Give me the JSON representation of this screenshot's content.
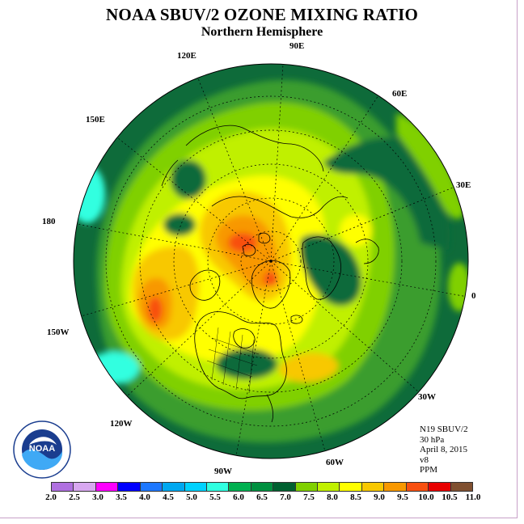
{
  "title": "NOAA SBUV/2 OZONE MIXING RATIO",
  "subtitle": "Northern Hemisphere",
  "longitude_labels": {
    "lon_90e": "90E",
    "lon_60e": "60E",
    "lon_30e": "30E",
    "lon_0": "0",
    "lon_30w": "30W",
    "lon_60w": "60W",
    "lon_90w": "90W",
    "lon_120w": "120W",
    "lon_150w": "150W",
    "lon_180": "180",
    "lon_150e": "150E",
    "lon_120e": "120E"
  },
  "info": {
    "satellite": "N19 SBUV/2",
    "level": "30 hPa",
    "date": "April 8, 2015",
    "version": "v8",
    "units": "PPM"
  },
  "logo_text": "NOAA",
  "colorbar": {
    "ticks": [
      "2.0",
      "2.5",
      "3.0",
      "3.5",
      "4.0",
      "4.5",
      "5.0",
      "5.5",
      "6.0",
      "6.5",
      "7.0",
      "7.5",
      "8.0",
      "8.5",
      "9.0",
      "9.5",
      "10.0",
      "10.5",
      "11.0"
    ],
    "colors": [
      "#b070e0",
      "#d8a8f0",
      "#ff00ff",
      "#0000ff",
      "#1e78ff",
      "#00a8f0",
      "#00d2ff",
      "#30ffe0",
      "#00b050",
      "#009040",
      "#006030",
      "#80d000",
      "#c0f000",
      "#ffff00",
      "#f8c800",
      "#f89800",
      "#f85010",
      "#e80000",
      "#805030"
    ]
  },
  "colors": {
    "page_background": "#ffffff",
    "map_outline": "#000000",
    "coastline": "#000000",
    "graticule": "#000000"
  }
}
